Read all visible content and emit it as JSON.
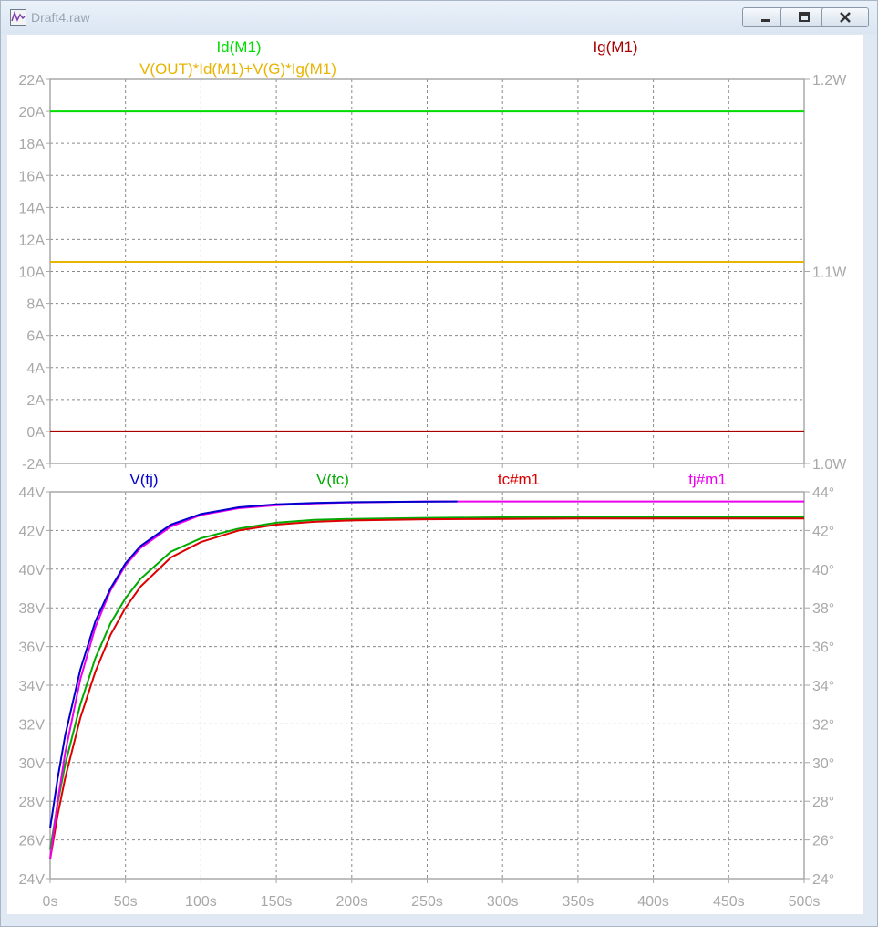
{
  "window": {
    "title": "Draft4.raw",
    "icons": [
      "waveform-icon",
      "minimize-icon",
      "maximize-icon",
      "close-icon"
    ]
  },
  "chart_data": [
    {
      "type": "line",
      "x_tick_labels": [
        "0s",
        "50s",
        "100s",
        "150s",
        "200s",
        "250s",
        "300s",
        "350s",
        "400s",
        "450s",
        "500s"
      ],
      "xlim": [
        0,
        500
      ],
      "left_axis": {
        "ylim": [
          -2,
          22
        ],
        "tick_labels": [
          "-2A",
          "0A",
          "2A",
          "4A",
          "6A",
          "8A",
          "10A",
          "12A",
          "14A",
          "16A",
          "18A",
          "20A",
          "22A"
        ]
      },
      "right_axis": {
        "ylim": [
          1.0,
          1.2
        ],
        "tick_labels": [
          "1.0W",
          "1.1W",
          "1.2W"
        ]
      },
      "grid": true,
      "legend": [
        {
          "name": "Id(M1)",
          "color": "#00dd00"
        },
        {
          "name": "Ig(M1)",
          "color": "#aa0000"
        },
        {
          "name": "V(OUT)*Id(M1)+V(G)*Ig(M1)",
          "color": "#e8b400"
        }
      ],
      "series": [
        {
          "name": "Id(M1)",
          "axis": "left",
          "color": "#00dd00",
          "x": [
            0,
            500
          ],
          "y": [
            20,
            20
          ]
        },
        {
          "name": "Ig(M1)",
          "axis": "left",
          "color": "#aa0000",
          "x": [
            0,
            500
          ],
          "y": [
            0,
            0
          ]
        },
        {
          "name": "V(OUT)*Id(M1)+V(G)*Ig(M1)",
          "axis": "right",
          "color": "#e8b400",
          "x": [
            0,
            500
          ],
          "y": [
            1.105,
            1.105
          ]
        }
      ]
    },
    {
      "type": "line",
      "x_tick_labels": [
        "0s",
        "50s",
        "100s",
        "150s",
        "200s",
        "250s",
        "300s",
        "350s",
        "400s",
        "450s",
        "500s"
      ],
      "xlim": [
        0,
        500
      ],
      "left_axis": {
        "ylim": [
          24,
          44
        ],
        "tick_labels": [
          "24V",
          "26V",
          "28V",
          "30V",
          "32V",
          "34V",
          "36V",
          "38V",
          "40V",
          "42V",
          "44V"
        ]
      },
      "right_axis": {
        "ylim": [
          24,
          44
        ],
        "tick_labels": [
          "24°",
          "26°",
          "28°",
          "30°",
          "32°",
          "34°",
          "36°",
          "38°",
          "40°",
          "42°",
          "44°"
        ]
      },
      "grid": true,
      "legend": [
        {
          "name": "V(tj)",
          "color": "#0000cc"
        },
        {
          "name": "V(tc)",
          "color": "#00aa00"
        },
        {
          "name": "tc#m1",
          "color": "#dd0000"
        },
        {
          "name": "tj#m1",
          "color": "#ee00ee"
        }
      ],
      "series": [
        {
          "name": "V(tc)",
          "color": "#00aa00",
          "x": [
            0,
            5,
            10,
            20,
            30,
            40,
            50,
            60,
            80,
            100,
            125,
            150,
            175,
            200,
            250,
            300,
            350,
            400,
            450,
            500
          ],
          "y": [
            25.5,
            27.9,
            29.9,
            33.0,
            35.4,
            37.2,
            38.5,
            39.5,
            40.9,
            41.6,
            42.1,
            42.4,
            42.55,
            42.6,
            42.65,
            42.68,
            42.7,
            42.7,
            42.7,
            42.7
          ]
        },
        {
          "name": "tc#m1",
          "color": "#dd0000",
          "x": [
            0,
            5,
            10,
            20,
            30,
            40,
            50,
            60,
            80,
            100,
            125,
            150,
            175,
            200,
            250,
            300,
            350,
            400,
            450,
            500
          ],
          "y": [
            25.0,
            27.3,
            29.2,
            32.3,
            34.7,
            36.6,
            38.0,
            39.1,
            40.6,
            41.4,
            42.0,
            42.3,
            42.45,
            42.52,
            42.58,
            42.6,
            42.62,
            42.62,
            42.62,
            42.62
          ]
        },
        {
          "name": "tj#m1",
          "color": "#ee00ee",
          "x": [
            0,
            5,
            10,
            20,
            30,
            40,
            50,
            60,
            80,
            100,
            125,
            150,
            175,
            200,
            250,
            300,
            350,
            400,
            450,
            500
          ],
          "y": [
            25.0,
            28.0,
            30.5,
            34.3,
            37.0,
            38.9,
            40.2,
            41.1,
            42.2,
            42.8,
            43.15,
            43.3,
            43.4,
            43.45,
            43.5,
            43.5,
            43.5,
            43.5,
            43.5,
            43.5
          ]
        },
        {
          "name": "V(tj)",
          "color": "#0000cc",
          "x": [
            0,
            5,
            10,
            20,
            30,
            40,
            50,
            60,
            80,
            100,
            125,
            150,
            175,
            200,
            230,
            270
          ],
          "y": [
            26.6,
            29.2,
            31.4,
            34.8,
            37.3,
            39.0,
            40.3,
            41.2,
            42.3,
            42.85,
            43.2,
            43.35,
            43.42,
            43.46,
            43.48,
            43.5
          ]
        }
      ]
    }
  ]
}
